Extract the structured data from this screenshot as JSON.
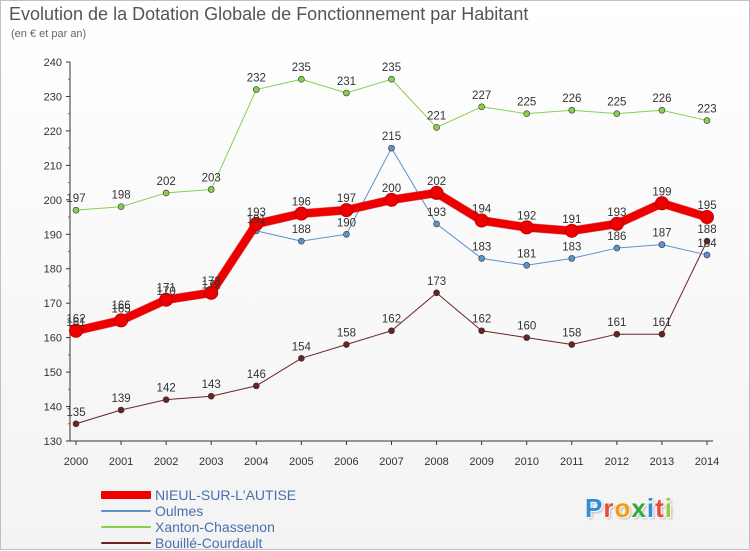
{
  "title": "Evolution de la Dotation Globale de Fonctionnement par Habitant",
  "subtitle": "(en € et par an)",
  "logo": {
    "text": "Proxiti",
    "letters": [
      {
        "ch": "P",
        "color": "#2e8fd6"
      },
      {
        "ch": "r",
        "color": "#e84c3d"
      },
      {
        "ch": "o",
        "color": "#f39c12"
      },
      {
        "ch": "x",
        "color": "#2eab3c"
      },
      {
        "ch": "i",
        "color": "#2e8fd6"
      },
      {
        "ch": "t",
        "color": "#e84c3d"
      },
      {
        "ch": "i",
        "color": "#9bcc3a"
      }
    ]
  },
  "chart_data": {
    "type": "line",
    "title": "Evolution de la Dotation Globale de Fonctionnement par Habitant",
    "ylabel": "(en € et par an)",
    "xlabel": "",
    "ylim": [
      130,
      240
    ],
    "yticks": [
      130,
      140,
      150,
      160,
      170,
      180,
      190,
      200,
      210,
      220,
      230,
      240
    ],
    "grid": false,
    "legend": "bottom-left",
    "categories": [
      "2000",
      "2001",
      "2002",
      "2003",
      "2004",
      "2005",
      "2006",
      "2007",
      "2008",
      "2009",
      "2010",
      "2011",
      "2012",
      "2013",
      "2014"
    ],
    "series": [
      {
        "name": "Bouillé-Courdault",
        "color": "#6b2222",
        "width": 1,
        "values": [
          135,
          139,
          142,
          143,
          146,
          154,
          158,
          162,
          173,
          162,
          160,
          158,
          161,
          161,
          188
        ],
        "labels": [
          "135",
          "139",
          "142",
          "143",
          "146",
          "154",
          "158",
          "162",
          "173",
          "162",
          "160",
          "158",
          "161",
          "161",
          "188"
        ]
      },
      {
        "name": "Xanton-Chassenon",
        "color": "#86cf4f",
        "width": 1,
        "values": [
          197,
          198,
          202,
          203,
          232,
          235,
          231,
          235,
          221,
          227,
          225,
          226,
          225,
          226,
          223
        ],
        "labels": [
          "197",
          "198",
          "202",
          "203",
          "232",
          "235",
          "231",
          "235",
          "221",
          "227",
          "225",
          "226",
          "225",
          "226",
          "223"
        ]
      },
      {
        "name": "Oulmes",
        "color": "#5c93cc",
        "width": 1,
        "values": [
          161,
          166,
          170,
          172,
          191,
          188,
          190,
          215,
          193,
          183,
          181,
          183,
          186,
          187,
          184
        ],
        "labels": [
          "161",
          "166",
          "170",
          "172",
          "191",
          "188",
          "190",
          "215",
          "193",
          "183",
          "181",
          "183",
          "186",
          "187",
          "184"
        ]
      },
      {
        "name": "NIEUL-SUR-L'AUTISE",
        "color": "#ee0000",
        "width": 8,
        "values": [
          162,
          165,
          171,
          173,
          193,
          196,
          197,
          200,
          202,
          194,
          192,
          191,
          193,
          199,
          195
        ],
        "labels": [
          "162",
          "165",
          "171",
          "173",
          "193",
          "196",
          "197",
          "200",
          "202",
          "194",
          "192",
          "191",
          "193",
          "199",
          "195"
        ]
      }
    ]
  }
}
